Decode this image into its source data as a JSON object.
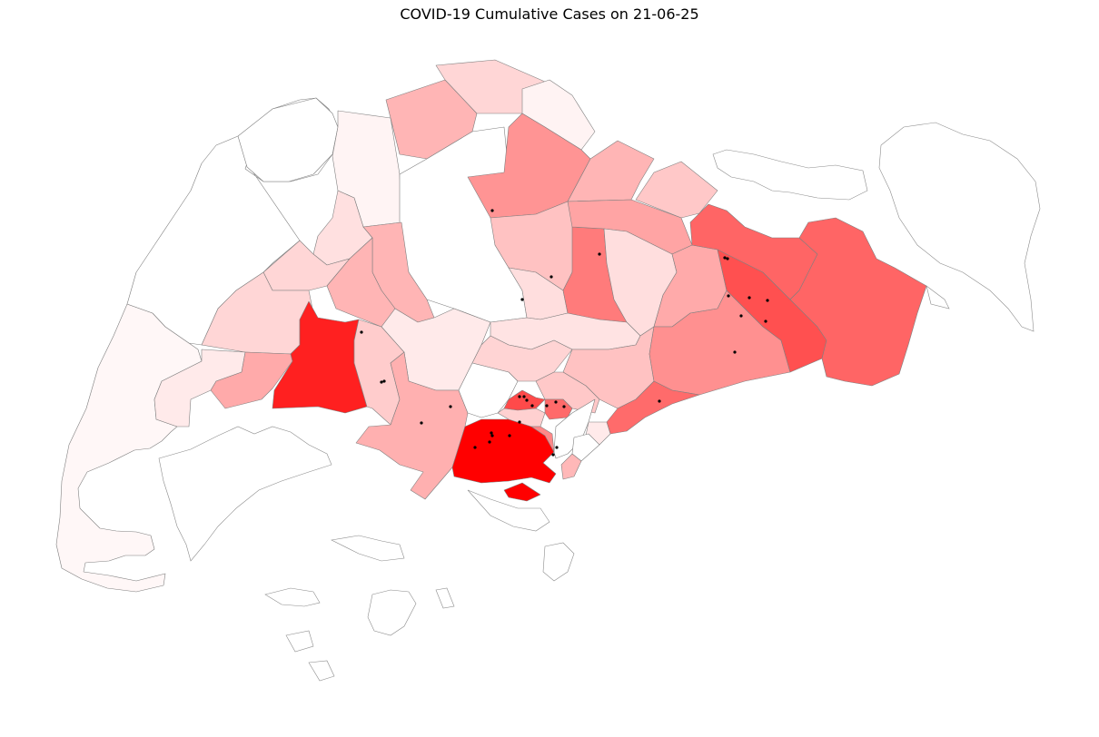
{
  "title": "COVID-19 Cumulative Cases on 21-06-25",
  "colors": {
    "max_fill": "#ff0000",
    "low_fill": "#fff5f5",
    "boundary": "#7f7f7f",
    "case_marker": "#000000"
  },
  "legend": null
}
